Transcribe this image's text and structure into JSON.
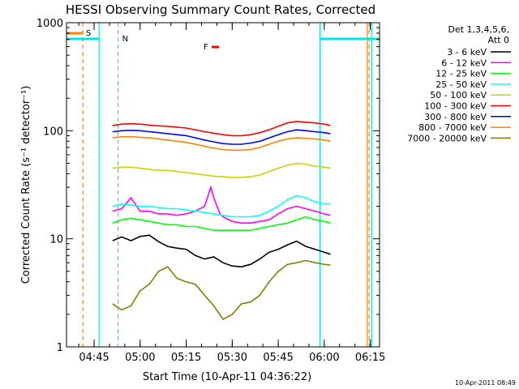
{
  "chart_data": {
    "type": "line",
    "title": "HESSI Observing Summary Count Rates, Corrected",
    "xlabel": "Start Time (10-Apr-11 04:36:22)",
    "ylabel": "Corrected Count Rate (s⁻¹ detector⁻¹)",
    "yscale": "log",
    "ylim": [
      1,
      1000
    ],
    "xlim_minutes_after_0436": [
      0,
      102
    ],
    "x_tick_labels": [
      "04:45",
      "05:00",
      "05:15",
      "05:30",
      "05:45",
      "06:00",
      "06:15"
    ],
    "x_tick_minutes_after_0436": [
      9,
      24,
      39,
      54,
      69,
      84,
      99
    ],
    "y_tick_labels": [
      "1",
      "10",
      "100",
      "1000"
    ],
    "legend_header": [
      "Det 1,3,4,5,6,",
      "Att 0"
    ],
    "legend_position": "right",
    "timestamp": "10-Apr-2011 08:49",
    "annotations": {
      "S": {
        "label": "S",
        "color": "#ff8000"
      },
      "N": {
        "label": "N",
        "color": "#00e5ee"
      },
      "F": {
        "label": "F",
        "color": "#ff0000"
      }
    },
    "series": [
      {
        "name": "3 - 6 keV",
        "color": "#000000",
        "points": [
          [
            15,
            9.6
          ],
          [
            18,
            10.4
          ],
          [
            21,
            9.6
          ],
          [
            24,
            10.5
          ],
          [
            27,
            10.8
          ],
          [
            30,
            9.4
          ],
          [
            33,
            8.5
          ],
          [
            36,
            8.2
          ],
          [
            39,
            8.0
          ],
          [
            42,
            7.0
          ],
          [
            45,
            6.5
          ],
          [
            48,
            6.8
          ],
          [
            51,
            6.0
          ],
          [
            54,
            5.6
          ],
          [
            57,
            5.5
          ],
          [
            60,
            5.8
          ],
          [
            63,
            6.5
          ],
          [
            66,
            7.5
          ],
          [
            69,
            8.0
          ],
          [
            72,
            8.8
          ],
          [
            75,
            9.5
          ],
          [
            78,
            8.5
          ],
          [
            81,
            8.0
          ],
          [
            84,
            7.5
          ],
          [
            86,
            7.2
          ]
        ]
      },
      {
        "name": "6 - 12 keV",
        "color": "#ff00ff",
        "points": [
          [
            15,
            18
          ],
          [
            18,
            19
          ],
          [
            21,
            24
          ],
          [
            24,
            18
          ],
          [
            27,
            18
          ],
          [
            30,
            17
          ],
          [
            33,
            17
          ],
          [
            36,
            16.5
          ],
          [
            39,
            17
          ],
          [
            42,
            18
          ],
          [
            45,
            20
          ],
          [
            47,
            30
          ],
          [
            48,
            24
          ],
          [
            50,
            17
          ],
          [
            51,
            16
          ],
          [
            54,
            14.5
          ],
          [
            57,
            14
          ],
          [
            60,
            14
          ],
          [
            63,
            14.5
          ],
          [
            66,
            15
          ],
          [
            69,
            17
          ],
          [
            72,
            19
          ],
          [
            75,
            20
          ],
          [
            78,
            19
          ],
          [
            81,
            18
          ],
          [
            84,
            17
          ],
          [
            86,
            16.5
          ]
        ]
      },
      {
        "name": "12 - 25 keV",
        "color": "#00ff00",
        "points": [
          [
            15,
            14
          ],
          [
            18,
            15
          ],
          [
            21,
            15.5
          ],
          [
            24,
            15
          ],
          [
            27,
            14.5
          ],
          [
            30,
            14
          ],
          [
            33,
            13.5
          ],
          [
            36,
            13.5
          ],
          [
            39,
            13
          ],
          [
            42,
            13
          ],
          [
            45,
            12.5
          ],
          [
            48,
            12
          ],
          [
            51,
            12
          ],
          [
            54,
            12
          ],
          [
            57,
            12
          ],
          [
            60,
            12
          ],
          [
            63,
            12.5
          ],
          [
            66,
            13
          ],
          [
            69,
            13.5
          ],
          [
            72,
            14
          ],
          [
            75,
            15
          ],
          [
            78,
            16
          ],
          [
            81,
            15
          ],
          [
            84,
            14.5
          ],
          [
            86,
            14
          ]
        ]
      },
      {
        "name": "25 - 50 keV",
        "color": "#00ffff",
        "points": [
          [
            15,
            20
          ],
          [
            18,
            21
          ],
          [
            21,
            20.5
          ],
          [
            24,
            20
          ],
          [
            27,
            20
          ],
          [
            30,
            19.5
          ],
          [
            33,
            19
          ],
          [
            36,
            19
          ],
          [
            39,
            18.5
          ],
          [
            42,
            18
          ],
          [
            45,
            17.5
          ],
          [
            48,
            17
          ],
          [
            51,
            16.5
          ],
          [
            54,
            16
          ],
          [
            57,
            16
          ],
          [
            60,
            16
          ],
          [
            63,
            16.5
          ],
          [
            66,
            18
          ],
          [
            69,
            20
          ],
          [
            72,
            23
          ],
          [
            75,
            25
          ],
          [
            78,
            24
          ],
          [
            81,
            22
          ],
          [
            84,
            21
          ],
          [
            86,
            21
          ]
        ]
      },
      {
        "name": "50 - 100 keV",
        "color": "#d0d000",
        "points": [
          [
            15,
            45
          ],
          [
            18,
            46
          ],
          [
            21,
            46
          ],
          [
            24,
            45
          ],
          [
            27,
            44
          ],
          [
            30,
            43
          ],
          [
            33,
            43
          ],
          [
            36,
            42
          ],
          [
            39,
            41
          ],
          [
            42,
            40
          ],
          [
            45,
            39
          ],
          [
            48,
            38
          ],
          [
            51,
            37.5
          ],
          [
            54,
            37
          ],
          [
            57,
            37
          ],
          [
            60,
            37.5
          ],
          [
            63,
            39
          ],
          [
            66,
            42
          ],
          [
            69,
            45
          ],
          [
            72,
            48
          ],
          [
            75,
            50
          ],
          [
            78,
            49
          ],
          [
            81,
            47
          ],
          [
            84,
            46
          ],
          [
            86,
            45
          ]
        ]
      },
      {
        "name": "100 - 300 keV",
        "color": "#ff0000",
        "points": [
          [
            15,
            112
          ],
          [
            18,
            115
          ],
          [
            21,
            116
          ],
          [
            24,
            115
          ],
          [
            27,
            113
          ],
          [
            30,
            111
          ],
          [
            33,
            110
          ],
          [
            36,
            108
          ],
          [
            39,
            106
          ],
          [
            42,
            102
          ],
          [
            45,
            98
          ],
          [
            48,
            95
          ],
          [
            51,
            92
          ],
          [
            54,
            90
          ],
          [
            57,
            90
          ],
          [
            60,
            92
          ],
          [
            63,
            96
          ],
          [
            66,
            102
          ],
          [
            69,
            110
          ],
          [
            72,
            118
          ],
          [
            75,
            122
          ],
          [
            78,
            120
          ],
          [
            81,
            118
          ],
          [
            84,
            115
          ],
          [
            86,
            112
          ]
        ]
      },
      {
        "name": "300 - 800 keV",
        "color": "#0000ff",
        "points": [
          [
            15,
            98
          ],
          [
            18,
            100
          ],
          [
            21,
            101
          ],
          [
            24,
            100
          ],
          [
            27,
            98
          ],
          [
            30,
            96
          ],
          [
            33,
            94
          ],
          [
            36,
            92
          ],
          [
            39,
            90
          ],
          [
            42,
            86
          ],
          [
            45,
            82
          ],
          [
            48,
            79
          ],
          [
            51,
            76
          ],
          [
            54,
            75
          ],
          [
            57,
            75
          ],
          [
            60,
            77
          ],
          [
            63,
            80
          ],
          [
            66,
            86
          ],
          [
            69,
            92
          ],
          [
            72,
            98
          ],
          [
            75,
            102
          ],
          [
            78,
            100
          ],
          [
            81,
            98
          ],
          [
            84,
            96
          ],
          [
            86,
            94
          ]
        ]
      },
      {
        "name": "800 - 7000 keV",
        "color": "#ff8000",
        "points": [
          [
            15,
            86
          ],
          [
            18,
            88
          ],
          [
            21,
            88
          ],
          [
            24,
            87
          ],
          [
            27,
            86
          ],
          [
            30,
            84
          ],
          [
            33,
            82
          ],
          [
            36,
            80
          ],
          [
            39,
            78
          ],
          [
            42,
            75
          ],
          [
            45,
            72
          ],
          [
            48,
            69
          ],
          [
            51,
            67
          ],
          [
            54,
            66
          ],
          [
            57,
            66
          ],
          [
            60,
            67
          ],
          [
            63,
            70
          ],
          [
            66,
            75
          ],
          [
            69,
            80
          ],
          [
            72,
            84
          ],
          [
            75,
            86
          ],
          [
            78,
            85
          ],
          [
            81,
            84
          ],
          [
            84,
            82
          ],
          [
            86,
            80
          ]
        ]
      },
      {
        "name": "7000 - 20000 keV",
        "color": "#808000",
        "points": [
          [
            15,
            2.5
          ],
          [
            18,
            2.2
          ],
          [
            21,
            2.4
          ],
          [
            24,
            3.3
          ],
          [
            27,
            3.8
          ],
          [
            30,
            5.0
          ],
          [
            33,
            5.5
          ],
          [
            36,
            4.3
          ],
          [
            39,
            4.0
          ],
          [
            42,
            3.8
          ],
          [
            45,
            3.0
          ],
          [
            48,
            2.4
          ],
          [
            51,
            1.8
          ],
          [
            54,
            2.0
          ],
          [
            57,
            2.5
          ],
          [
            60,
            2.6
          ],
          [
            63,
            3.0
          ],
          [
            66,
            4.0
          ],
          [
            69,
            5.0
          ],
          [
            72,
            5.8
          ],
          [
            75,
            6.0
          ],
          [
            78,
            6.3
          ],
          [
            81,
            6.0
          ],
          [
            84,
            5.8
          ],
          [
            86,
            5.7
          ]
        ]
      }
    ]
  }
}
